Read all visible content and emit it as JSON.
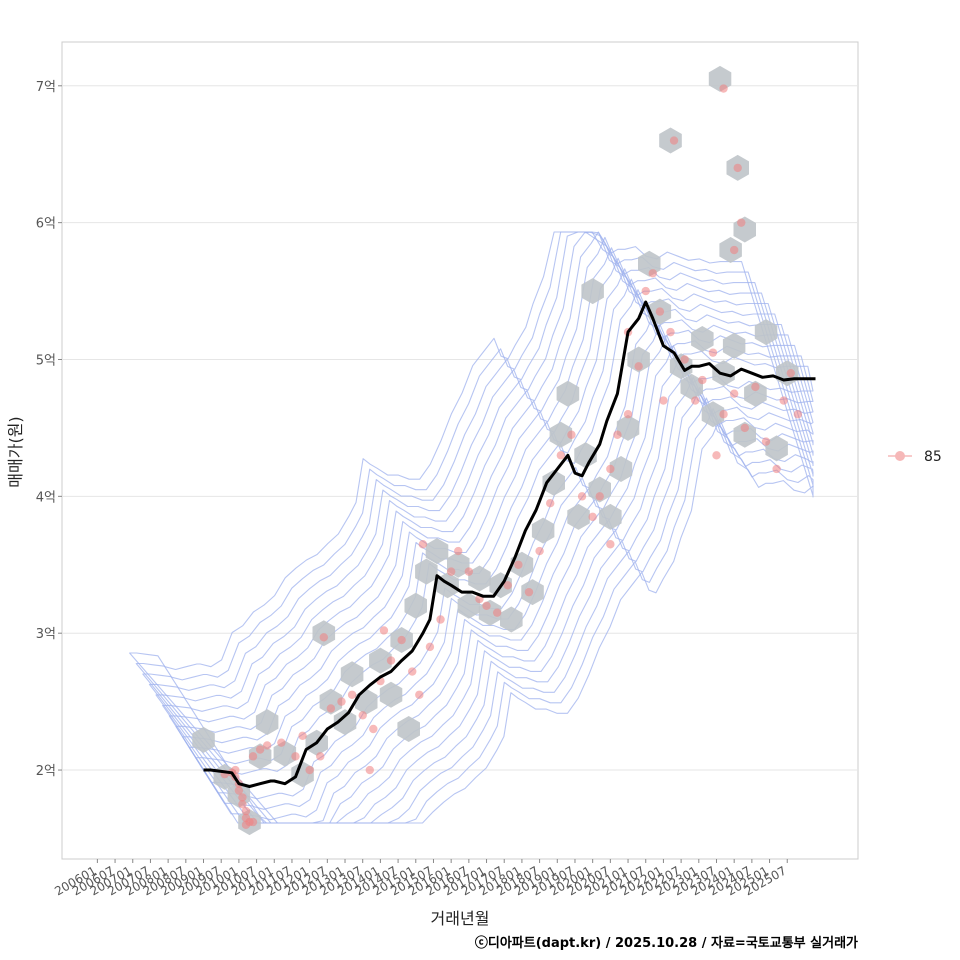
{
  "chart_data": {
    "type": "scatter",
    "ylabel": "매매가(원)",
    "xlabel": "거래년월",
    "caption": "ⓒ디아파트(dapt.kr) / 2025.10.28 / 자료=국토교통부 실거래가",
    "legend": {
      "label": "85",
      "position": "right"
    },
    "xlim": [
      2005.0,
      2027.5
    ],
    "ylim": [
      1.35,
      7.32
    ],
    "y_ticks": [
      {
        "value": 2,
        "label": "2억"
      },
      {
        "value": 3,
        "label": "3억"
      },
      {
        "value": 4,
        "label": "4억"
      },
      {
        "value": 5,
        "label": "5억"
      },
      {
        "value": 6,
        "label": "6억"
      },
      {
        "value": 7,
        "label": "7억"
      }
    ],
    "x_ticks": [
      "200601",
      "200607",
      "200701",
      "200707",
      "200801",
      "200807",
      "200901",
      "200907",
      "201001",
      "201007",
      "201101",
      "201107",
      "201201",
      "201207",
      "201301",
      "201307",
      "201401",
      "201407",
      "201501",
      "201507",
      "201601",
      "201607",
      "201701",
      "201707",
      "201801",
      "201807",
      "201901",
      "201907",
      "202001",
      "202007",
      "202101",
      "202107",
      "202201",
      "202207",
      "202301",
      "202307",
      "202401",
      "202407",
      "202501",
      "202507"
    ],
    "series": [
      {
        "name": "moving-average",
        "x": [
          2009.0,
          2009.2,
          2009.5,
          2009.8,
          2010.0,
          2010.3,
          2010.6,
          2010.9,
          2011.0,
          2011.3,
          2011.6,
          2011.9,
          2012.2,
          2012.5,
          2012.8,
          2013.1,
          2013.4,
          2013.7,
          2014.0,
          2014.3,
          2014.6,
          2014.9,
          2015.2,
          2015.4,
          2015.6,
          2015.8,
          2016.0,
          2016.3,
          2016.6,
          2016.9,
          2017.2,
          2017.5,
          2017.8,
          2018.1,
          2018.4,
          2018.7,
          2019.0,
          2019.3,
          2019.5,
          2019.7,
          2019.9,
          2020.2,
          2020.4,
          2020.7,
          2021.0,
          2021.3,
          2021.5,
          2021.7,
          2022.0,
          2022.3,
          2022.6,
          2022.8,
          2023.0,
          2023.3,
          2023.6,
          2023.9,
          2024.2,
          2024.5,
          2024.8,
          2025.1,
          2025.4,
          2025.7,
          2026.0,
          2026.3
        ],
        "values": [
          2.0,
          2.0,
          1.99,
          1.98,
          1.9,
          1.88,
          1.9,
          1.92,
          1.92,
          1.9,
          1.95,
          2.15,
          2.2,
          2.3,
          2.35,
          2.42,
          2.55,
          2.62,
          2.68,
          2.72,
          2.8,
          2.87,
          3.0,
          3.1,
          3.42,
          3.38,
          3.35,
          3.3,
          3.3,
          3.27,
          3.27,
          3.38,
          3.55,
          3.75,
          3.9,
          4.1,
          4.2,
          4.3,
          4.17,
          4.15,
          4.25,
          4.38,
          4.55,
          4.75,
          5.2,
          5.3,
          5.42,
          5.3,
          5.1,
          5.05,
          4.92,
          4.95,
          4.95,
          4.97,
          4.9,
          4.88,
          4.93,
          4.9,
          4.87,
          4.88,
          4.85,
          4.86,
          4.86,
          4.86
        ]
      }
    ],
    "points": [
      [
        2009.8,
        1.98
      ],
      [
        2009.9,
        1.95
      ],
      [
        2010.0,
        1.9
      ],
      [
        2010.0,
        1.85
      ],
      [
        2010.1,
        1.8
      ],
      [
        2010.1,
        1.75
      ],
      [
        2010.2,
        1.7
      ],
      [
        2010.2,
        1.65
      ],
      [
        2010.3,
        1.62
      ],
      [
        2010.2,
        1.6
      ],
      [
        2010.4,
        1.62
      ],
      [
        2009.6,
        1.97
      ],
      [
        2009.9,
        2.0
      ],
      [
        2010.4,
        2.1
      ],
      [
        2010.6,
        2.15
      ],
      [
        2010.8,
        2.18
      ],
      [
        2011.2,
        2.2
      ],
      [
        2011.6,
        2.1
      ],
      [
        2011.8,
        2.25
      ],
      [
        2012.0,
        2.0
      ],
      [
        2012.3,
        2.1
      ],
      [
        2012.6,
        2.45
      ],
      [
        2012.9,
        2.5
      ],
      [
        2013.2,
        2.55
      ],
      [
        2013.5,
        2.4
      ],
      [
        2013.8,
        2.3
      ],
      [
        2012.4,
        2.97
      ],
      [
        2014.0,
        2.65
      ],
      [
        2014.3,
        2.8
      ],
      [
        2014.6,
        2.95
      ],
      [
        2014.9,
        2.72
      ],
      [
        2015.1,
        2.55
      ],
      [
        2015.4,
        2.9
      ],
      [
        2015.7,
        3.1
      ],
      [
        2016.0,
        3.45
      ],
      [
        2016.2,
        3.6
      ],
      [
        2016.5,
        3.45
      ],
      [
        2016.8,
        3.25
      ],
      [
        2017.0,
        3.2
      ],
      [
        2017.3,
        3.15
      ],
      [
        2017.6,
        3.35
      ],
      [
        2017.9,
        3.5
      ],
      [
        2018.2,
        3.3
      ],
      [
        2018.5,
        3.6
      ],
      [
        2018.8,
        3.95
      ],
      [
        2019.1,
        4.3
      ],
      [
        2019.4,
        4.45
      ],
      [
        2019.7,
        4.0
      ],
      [
        2020.0,
        3.85
      ],
      [
        2020.2,
        4.0
      ],
      [
        2020.5,
        4.2
      ],
      [
        2020.7,
        4.45
      ],
      [
        2021.0,
        4.6
      ],
      [
        2021.3,
        4.95
      ],
      [
        2021.5,
        5.5
      ],
      [
        2021.7,
        5.63
      ],
      [
        2021.9,
        5.35
      ],
      [
        2022.2,
        5.2
      ],
      [
        2022.3,
        6.6
      ],
      [
        2022.6,
        5.0
      ],
      [
        2022.9,
        4.7
      ],
      [
        2023.1,
        4.85
      ],
      [
        2023.4,
        5.05
      ],
      [
        2023.7,
        4.6
      ],
      [
        2024.0,
        4.75
      ],
      [
        2024.3,
        4.5
      ],
      [
        2024.6,
        4.8
      ],
      [
        2024.9,
        4.4
      ],
      [
        2025.2,
        4.2
      ],
      [
        2025.4,
        4.7
      ],
      [
        2025.6,
        4.9
      ],
      [
        2025.8,
        4.6
      ],
      [
        2024.0,
        5.8
      ],
      [
        2024.2,
        6.0
      ],
      [
        2024.1,
        6.4
      ],
      [
        2023.7,
        6.98
      ],
      [
        2020.5,
        3.65
      ],
      [
        2015.2,
        3.65
      ],
      [
        2014.1,
        3.02
      ],
      [
        2013.7,
        2.0
      ],
      [
        2021.0,
        5.2
      ],
      [
        2022.0,
        4.7
      ],
      [
        2023.5,
        4.3
      ]
    ],
    "hexbins": [
      [
        2009.0,
        2.22
      ],
      [
        2009.6,
        1.95
      ],
      [
        2010.0,
        1.82
      ],
      [
        2010.3,
        1.62
      ],
      [
        2010.6,
        2.1
      ],
      [
        2010.8,
        2.35
      ],
      [
        2011.3,
        2.12
      ],
      [
        2011.8,
        1.97
      ],
      [
        2012.2,
        2.2
      ],
      [
        2012.6,
        2.5
      ],
      [
        2012.4,
        3.0
      ],
      [
        2013.0,
        2.35
      ],
      [
        2013.2,
        2.7
      ],
      [
        2013.6,
        2.5
      ],
      [
        2014.0,
        2.8
      ],
      [
        2014.3,
        2.55
      ],
      [
        2014.6,
        2.95
      ],
      [
        2014.8,
        2.3
      ],
      [
        2015.0,
        3.2
      ],
      [
        2015.3,
        3.45
      ],
      [
        2015.6,
        3.6
      ],
      [
        2015.9,
        3.35
      ],
      [
        2016.2,
        3.5
      ],
      [
        2016.5,
        3.2
      ],
      [
        2016.8,
        3.4
      ],
      [
        2017.1,
        3.15
      ],
      [
        2017.4,
        3.35
      ],
      [
        2017.7,
        3.1
      ],
      [
        2018.0,
        3.5
      ],
      [
        2018.3,
        3.3
      ],
      [
        2018.6,
        3.75
      ],
      [
        2018.9,
        4.1
      ],
      [
        2019.1,
        4.45
      ],
      [
        2019.3,
        4.75
      ],
      [
        2019.6,
        3.85
      ],
      [
        2019.8,
        4.3
      ],
      [
        2020.0,
        5.5
      ],
      [
        2020.2,
        4.05
      ],
      [
        2020.5,
        3.85
      ],
      [
        2020.8,
        4.2
      ],
      [
        2021.0,
        4.5
      ],
      [
        2021.3,
        5.0
      ],
      [
        2021.6,
        5.7
      ],
      [
        2021.9,
        5.35
      ],
      [
        2022.2,
        6.6
      ],
      [
        2022.5,
        4.95
      ],
      [
        2022.8,
        4.8
      ],
      [
        2023.1,
        5.15
      ],
      [
        2023.4,
        4.6
      ],
      [
        2023.7,
        4.9
      ],
      [
        2024.0,
        5.1
      ],
      [
        2024.3,
        4.45
      ],
      [
        2024.6,
        4.75
      ],
      [
        2024.9,
        5.2
      ],
      [
        2025.2,
        4.35
      ],
      [
        2025.5,
        4.9
      ],
      [
        2024.1,
        6.4
      ],
      [
        2024.3,
        5.95
      ],
      [
        2023.6,
        7.05
      ],
      [
        2023.9,
        5.8
      ]
    ],
    "colors": {
      "points": "#f08080",
      "hex": "#bfc4c9",
      "line": "#000000",
      "contour": "#9fb2ee",
      "grid": "#e6e6e6"
    }
  }
}
